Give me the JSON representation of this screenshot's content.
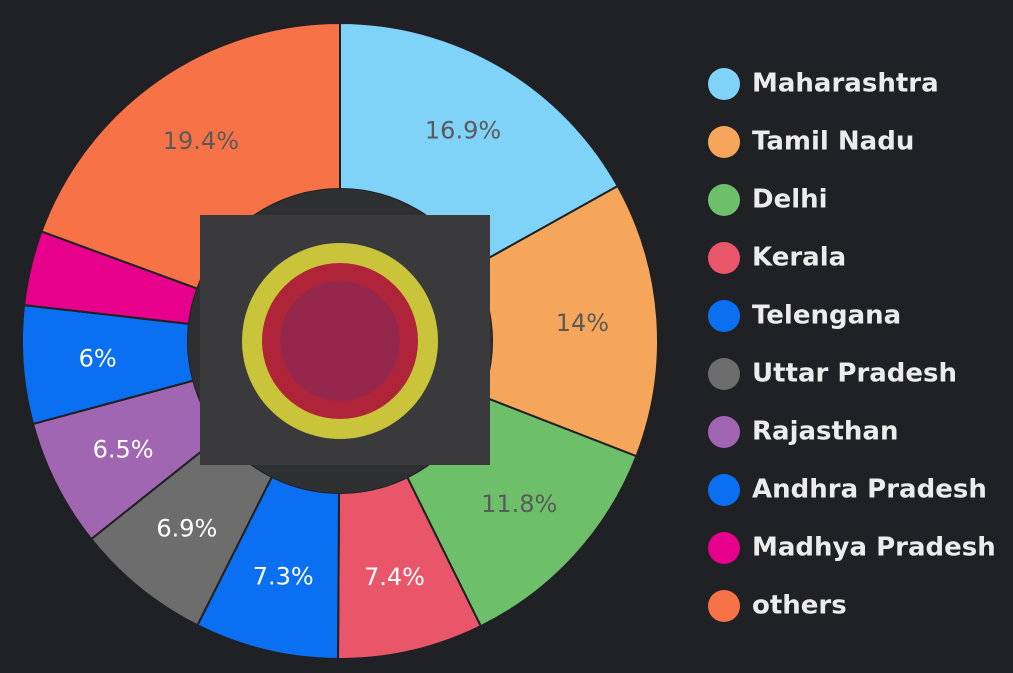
{
  "chart_data": {
    "type": "donut",
    "categories": [
      "Maharashtra",
      "Tamil Nadu",
      "Delhi",
      "Kerala",
      "Telengana",
      "Uttar Pradesh",
      "Rajasthan",
      "Andhra Pradesh",
      "Madhya Pradesh",
      "others"
    ],
    "values": [
      16.9,
      14,
      11.8,
      7.4,
      7.3,
      6.9,
      6.5,
      6,
      3.8,
      19.4
    ],
    "value_labels": [
      "16.9%",
      "14%",
      "11.8%",
      "7.4%",
      "7.3%",
      "6.9%",
      "6.5%",
      "6%",
      null,
      "19.4%"
    ],
    "colors": [
      "#7fd2f8",
      "#f6a65b",
      "#6dbf6a",
      "#ea5669",
      "#0a6ff0",
      "#6d6d6d",
      "#a166b1",
      "#0a6ff0",
      "#e6008c",
      "#f77347"
    ],
    "legend": "right"
  }
}
